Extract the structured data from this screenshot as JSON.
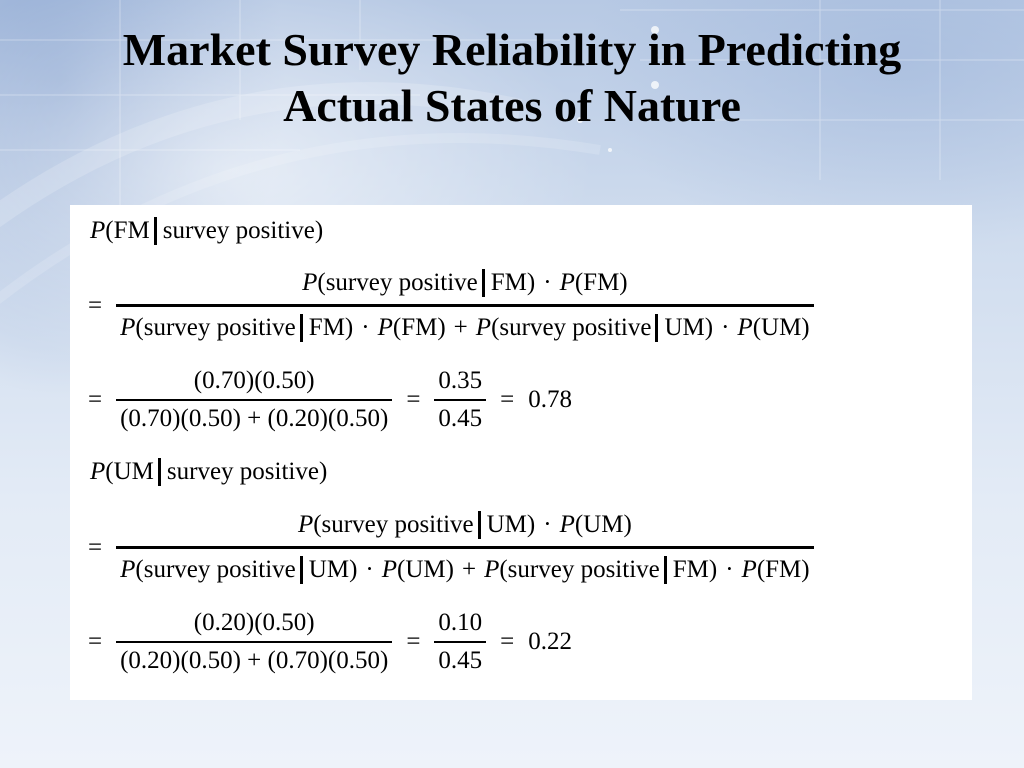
{
  "slide": {
    "title_line1": "Market Survey Reliability in Predicting",
    "title_line2": "Actual States of Nature"
  },
  "formulas": {
    "P": "P",
    "open_paren": "(",
    "close_paren": ")",
    "FM": "FM",
    "UM": "UM",
    "survey_positive": "survey positive",
    "equals": "=",
    "dot": "·",
    "plus": "+",
    "fm_given": {
      "head_event": "FM",
      "head_condition": "survey positive)",
      "num_condition": "survey positive",
      "num_event": "FM)",
      "num_prior": "(FM)",
      "den_term1_condition": "FM)",
      "den_term1_prior": "(FM)",
      "den_term2_condition": "UM)",
      "den_term2_prior": "(UM)",
      "calc_numerator": "(0.70)(0.50)",
      "calc_denominator": "(0.70)(0.50) + (0.20)(0.50)",
      "ratio_numerator": "0.35",
      "ratio_denominator": "0.45",
      "result": "0.78"
    },
    "um_given": {
      "head_event": "UM",
      "head_condition": "survey positive)",
      "num_event": "UM)",
      "num_prior": "(UM)",
      "den_term1_condition": "UM)",
      "den_term1_prior": "(UM)",
      "den_term2_condition": "FM)",
      "den_term2_prior": "(FM)",
      "calc_numerator": "(0.20)(0.50)",
      "calc_denominator": "(0.20)(0.50) + (0.70)(0.50)",
      "ratio_numerator": "0.10",
      "ratio_denominator": "0.45",
      "result": "0.22"
    }
  },
  "theme": {
    "title_color": "#000000",
    "panel_color": "#ffffff",
    "background_color": "#dde7f4"
  }
}
